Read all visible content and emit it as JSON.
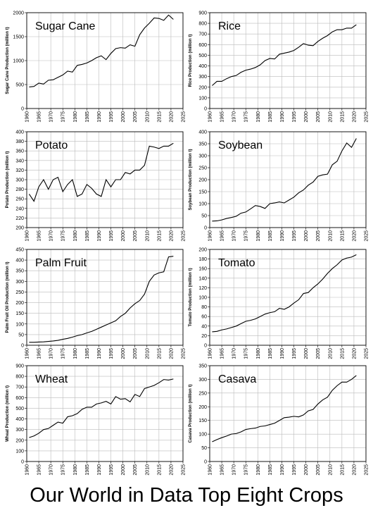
{
  "chart_data": [
    {
      "type": "line",
      "title": "Sugar Cane",
      "ylabel": "Sugar Cane Production (million t)",
      "color": "#000000",
      "grid": true,
      "x": [
        1961,
        1963,
        1965,
        1967,
        1969,
        1971,
        1973,
        1975,
        1977,
        1979,
        1981,
        1983,
        1985,
        1987,
        1989,
        1991,
        1993,
        1995,
        1997,
        1999,
        2001,
        2003,
        2005,
        2007,
        2009,
        2011,
        2013,
        2015,
        2017,
        2019,
        2021
      ],
      "values": [
        450,
        460,
        530,
        510,
        590,
        600,
        650,
        700,
        780,
        760,
        900,
        920,
        950,
        1000,
        1060,
        1100,
        1020,
        1150,
        1250,
        1270,
        1260,
        1330,
        1300,
        1540,
        1680,
        1780,
        1890,
        1880,
        1840,
        1950,
        1860
      ],
      "xlim": [
        1960,
        2025
      ],
      "xticks": [
        1960,
        1965,
        1970,
        1975,
        1980,
        1985,
        1990,
        1995,
        2000,
        2005,
        2010,
        2015,
        2020,
        2025
      ],
      "ylim": [
        0,
        2000
      ],
      "yticks": [
        0,
        500,
        1000,
        1500,
        2000
      ]
    },
    {
      "type": "line",
      "title": "Rice",
      "ylabel": "Rice Production (million t)",
      "color": "#000000",
      "grid": true,
      "x": [
        1961,
        1963,
        1965,
        1967,
        1969,
        1971,
        1973,
        1975,
        1977,
        1979,
        1981,
        1983,
        1985,
        1987,
        1989,
        1991,
        1993,
        1995,
        1997,
        1999,
        2001,
        2003,
        2005,
        2007,
        2009,
        2011,
        2013,
        2015,
        2017,
        2019,
        2021
      ],
      "values": [
        215,
        255,
        255,
        280,
        300,
        310,
        340,
        360,
        370,
        385,
        410,
        450,
        470,
        465,
        510,
        520,
        530,
        545,
        575,
        610,
        595,
        590,
        630,
        660,
        685,
        720,
        740,
        740,
        755,
        755,
        787
      ],
      "xlim": [
        1960,
        2025
      ],
      "xticks": [
        1960,
        1965,
        1970,
        1975,
        1980,
        1985,
        1990,
        1995,
        2000,
        2005,
        2010,
        2015,
        2020,
        2025
      ],
      "ylim": [
        0,
        900
      ],
      "yticks": [
        0,
        100,
        200,
        300,
        400,
        500,
        600,
        700,
        800,
        900
      ]
    },
    {
      "type": "line",
      "title": "Potato",
      "ylabel": "Potato Production (million t)",
      "color": "#000000",
      "grid": true,
      "x": [
        1961,
        1963,
        1965,
        1967,
        1969,
        1971,
        1973,
        1975,
        1977,
        1979,
        1981,
        1983,
        1985,
        1987,
        1989,
        1991,
        1993,
        1995,
        1997,
        1999,
        2001,
        2003,
        2005,
        2007,
        2009,
        2011,
        2013,
        2015,
        2017,
        2019,
        2021
      ],
      "values": [
        270,
        255,
        285,
        300,
        280,
        300,
        305,
        275,
        290,
        300,
        265,
        270,
        290,
        282,
        270,
        265,
        300,
        285,
        300,
        300,
        315,
        312,
        320,
        320,
        330,
        370,
        368,
        365,
        370,
        370,
        376
      ],
      "xlim": [
        1960,
        2025
      ],
      "xticks": [
        1960,
        1965,
        1970,
        1975,
        1980,
        1985,
        1990,
        1995,
        2000,
        2005,
        2010,
        2015,
        2020,
        2025
      ],
      "ylim": [
        200,
        400
      ],
      "yticks": [
        200,
        220,
        240,
        260,
        280,
        300,
        320,
        340,
        360,
        380,
        400
      ]
    },
    {
      "type": "line",
      "title": "Soybean",
      "ylabel": "Soybean Production (million t)",
      "color": "#000000",
      "grid": true,
      "x": [
        1961,
        1963,
        1965,
        1967,
        1969,
        1971,
        1973,
        1975,
        1977,
        1979,
        1981,
        1983,
        1985,
        1987,
        1989,
        1991,
        1993,
        1995,
        1997,
        1999,
        2001,
        2003,
        2005,
        2007,
        2009,
        2011,
        2013,
        2015,
        2017,
        2019,
        2021
      ],
      "values": [
        27,
        28,
        32,
        38,
        42,
        47,
        60,
        65,
        78,
        92,
        88,
        80,
        100,
        103,
        107,
        103,
        115,
        127,
        145,
        157,
        177,
        190,
        214,
        220,
        223,
        262,
        277,
        320,
        353,
        335,
        372
      ],
      "xlim": [
        1960,
        2025
      ],
      "xticks": [
        1960,
        1965,
        1970,
        1975,
        1980,
        1985,
        1990,
        1995,
        2000,
        2005,
        2010,
        2015,
        2020,
        2025
      ],
      "ylim": [
        0,
        400
      ],
      "yticks": [
        0,
        50,
        100,
        150,
        200,
        250,
        300,
        350,
        400
      ]
    },
    {
      "type": "line",
      "title": "Palm Fruit",
      "ylabel": "Palm Fruit Oil Production (million t)",
      "color": "#000000",
      "grid": true,
      "x": [
        1961,
        1963,
        1965,
        1967,
        1969,
        1971,
        1973,
        1975,
        1977,
        1979,
        1981,
        1983,
        1985,
        1987,
        1989,
        1991,
        1993,
        1995,
        1997,
        1999,
        2001,
        2003,
        2005,
        2007,
        2009,
        2011,
        2013,
        2015,
        2017,
        2019,
        2021
      ],
      "values": [
        14,
        14,
        15,
        16,
        18,
        20,
        23,
        28,
        32,
        38,
        45,
        50,
        58,
        65,
        75,
        85,
        95,
        105,
        115,
        135,
        150,
        175,
        195,
        210,
        240,
        300,
        330,
        340,
        345,
        415,
        418
      ],
      "xlim": [
        1960,
        2025
      ],
      "xticks": [
        1960,
        1965,
        1970,
        1975,
        1980,
        1985,
        1990,
        1995,
        2000,
        2005,
        2010,
        2015,
        2020,
        2025
      ],
      "ylim": [
        0,
        450
      ],
      "yticks": [
        0,
        50,
        100,
        150,
        200,
        250,
        300,
        350,
        400,
        450
      ]
    },
    {
      "type": "line",
      "title": "Tomato",
      "ylabel": "Tomato Production (million t)",
      "color": "#000000",
      "grid": true,
      "x": [
        1961,
        1963,
        1965,
        1967,
        1969,
        1971,
        1973,
        1975,
        1977,
        1979,
        1981,
        1983,
        1985,
        1987,
        1989,
        1991,
        1993,
        1995,
        1997,
        1999,
        2001,
        2003,
        2005,
        2007,
        2009,
        2011,
        2013,
        2015,
        2017,
        2019,
        2021
      ],
      "values": [
        28,
        29,
        32,
        34,
        37,
        40,
        45,
        50,
        52,
        55,
        60,
        65,
        68,
        70,
        77,
        75,
        80,
        88,
        95,
        108,
        110,
        120,
        128,
        138,
        150,
        160,
        168,
        178,
        182,
        184,
        189
      ],
      "xlim": [
        1960,
        2025
      ],
      "xticks": [
        1960,
        1965,
        1970,
        1975,
        1980,
        1985,
        1990,
        1995,
        2000,
        2005,
        2010,
        2015,
        2020,
        2025
      ],
      "ylim": [
        0,
        200
      ],
      "yticks": [
        0,
        20,
        40,
        60,
        80,
        100,
        120,
        140,
        160,
        180,
        200
      ]
    },
    {
      "type": "line",
      "title": "Wheat",
      "ylabel": "Wheat Production (million t)",
      "color": "#000000",
      "grid": true,
      "x": [
        1961,
        1963,
        1965,
        1967,
        1969,
        1971,
        1973,
        1975,
        1977,
        1979,
        1981,
        1983,
        1985,
        1987,
        1989,
        1991,
        1993,
        1995,
        1997,
        1999,
        2001,
        2003,
        2005,
        2007,
        2009,
        2011,
        2013,
        2015,
        2017,
        2019,
        2021
      ],
      "values": [
        225,
        240,
        265,
        300,
        310,
        340,
        370,
        360,
        420,
        430,
        450,
        490,
        510,
        510,
        540,
        550,
        565,
        540,
        610,
        585,
        590,
        560,
        630,
        610,
        685,
        700,
        715,
        740,
        770,
        765,
        775
      ],
      "xlim": [
        1960,
        2025
      ],
      "xticks": [
        1960,
        1965,
        1970,
        1975,
        1980,
        1985,
        1990,
        1995,
        2000,
        2005,
        2010,
        2015,
        2020,
        2025
      ],
      "ylim": [
        0,
        900
      ],
      "yticks": [
        0,
        100,
        200,
        300,
        400,
        500,
        600,
        700,
        800,
        900
      ]
    },
    {
      "type": "line",
      "title": "Casava",
      "ylabel": "Casava Production (million t)",
      "color": "#000000",
      "grid": true,
      "x": [
        1961,
        1963,
        1965,
        1967,
        1969,
        1971,
        1973,
        1975,
        1977,
        1979,
        1981,
        1983,
        1985,
        1987,
        1989,
        1991,
        1993,
        1995,
        1997,
        1999,
        2001,
        2003,
        2005,
        2007,
        2009,
        2011,
        2013,
        2015,
        2017,
        2019,
        2021
      ],
      "values": [
        72,
        80,
        87,
        93,
        100,
        102,
        108,
        117,
        120,
        122,
        128,
        130,
        135,
        140,
        150,
        160,
        162,
        165,
        163,
        170,
        185,
        190,
        210,
        225,
        235,
        260,
        277,
        290,
        290,
        300,
        314
      ],
      "xlim": [
        1960,
        2025
      ],
      "xticks": [
        1960,
        1965,
        1970,
        1975,
        1980,
        1985,
        1990,
        1995,
        2000,
        2005,
        2010,
        2015,
        2020,
        2025
      ],
      "ylim": [
        0,
        350
      ],
      "yticks": [
        0,
        50,
        100,
        150,
        200,
        250,
        300,
        350
      ]
    }
  ],
  "caption": "Our World in Data Top Eight Crops"
}
